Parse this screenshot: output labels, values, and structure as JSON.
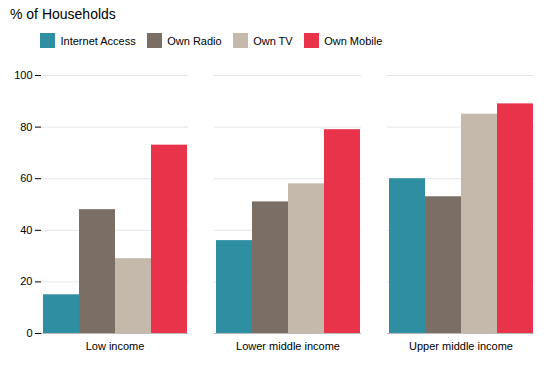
{
  "chart_data": {
    "type": "bar",
    "title": "% of Households",
    "categories": [
      "Low income",
      "Lower middle income",
      "Upper middle income"
    ],
    "series": [
      {
        "name": "Internet Access",
        "color": "#2e8fa3",
        "values": [
          15,
          36,
          60
        ]
      },
      {
        "name": "Own Radio",
        "color": "#7a6e65",
        "values": [
          48,
          51,
          53
        ]
      },
      {
        "name": "Own TV",
        "color": "#c4b9aa",
        "values": [
          29,
          58,
          85
        ]
      },
      {
        "name": "Own Mobile",
        "color": "#e8334a",
        "values": [
          73,
          79,
          89
        ]
      }
    ],
    "ylim": [
      0,
      100
    ],
    "yticks": [
      0,
      20,
      40,
      60,
      80,
      100
    ],
    "grid": true,
    "legend": "top"
  }
}
